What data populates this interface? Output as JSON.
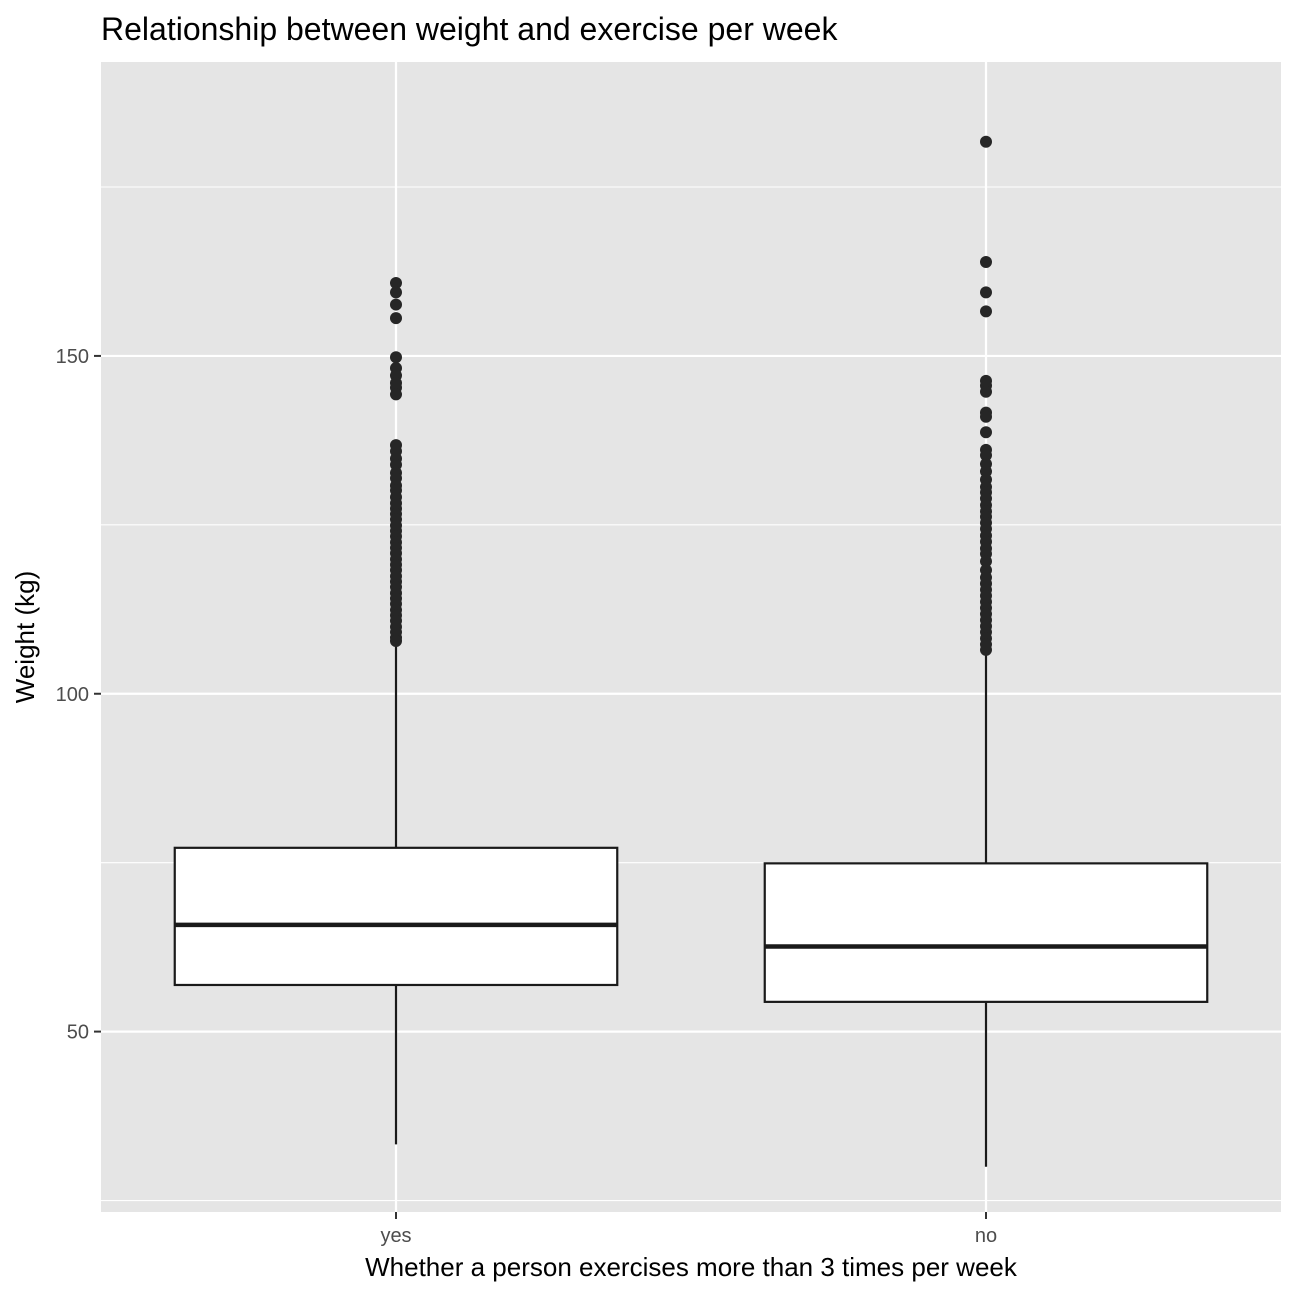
{
  "chart_data": {
    "type": "boxplot",
    "title": "Relationship between weight and exercise per week",
    "xlabel": "Whether a person exercises more than 3 times per week",
    "ylabel": "Weight (kg)",
    "ylim": [
      23.3,
      193.5
    ],
    "y_ticks": [
      50,
      100,
      150
    ],
    "grid": true,
    "colors": {
      "panel": "#e5e5e5",
      "grid": "#ffffff",
      "box_fill": "#ffffff",
      "box_stroke": "#1a1a1a",
      "outlier": "#262626",
      "tick_label": "#4d4d4d"
    },
    "categories": [
      "yes",
      "no"
    ],
    "boxes": [
      {
        "category": "yes",
        "q1": 56.9,
        "median": 65.8,
        "q3": 77.2,
        "whisker_low": 33.3,
        "whisker_high": 107.5,
        "outliers": [
          160.8,
          159.4,
          157.6,
          155.6,
          149.8,
          148.2,
          147.1,
          146.0,
          145.3,
          144.3,
          136.8,
          135.9,
          134.8,
          133.9,
          132.7,
          131.9,
          130.8,
          130.1,
          129.1,
          128.2,
          127.4,
          126.6,
          125.8,
          124.9,
          124.1,
          123.3,
          122.4,
          121.6,
          120.8,
          119.9,
          119.1,
          118.3,
          117.4,
          116.6,
          115.8,
          114.9,
          114.1,
          113.3,
          112.4,
          111.6,
          110.8,
          109.9,
          109.1,
          108.3,
          107.8
        ]
      },
      {
        "category": "no",
        "q1": 54.4,
        "median": 62.6,
        "q3": 74.9,
        "whisker_low": 30.0,
        "whisker_high": 106.0,
        "outliers": [
          181.7,
          163.9,
          159.4,
          156.6,
          146.3,
          145.6,
          144.7,
          141.6,
          141.0,
          138.7,
          136.1,
          135.3,
          134.0,
          132.9,
          131.7,
          130.6,
          129.8,
          128.9,
          127.9,
          127.0,
          126.2,
          125.3,
          124.4,
          123.4,
          122.5,
          121.5,
          120.7,
          119.6,
          118.3,
          117.2,
          116.3,
          115.4,
          114.5,
          113.6,
          112.7,
          111.8,
          110.9,
          110.0,
          109.1,
          108.2,
          107.3,
          106.5
        ]
      }
    ]
  }
}
